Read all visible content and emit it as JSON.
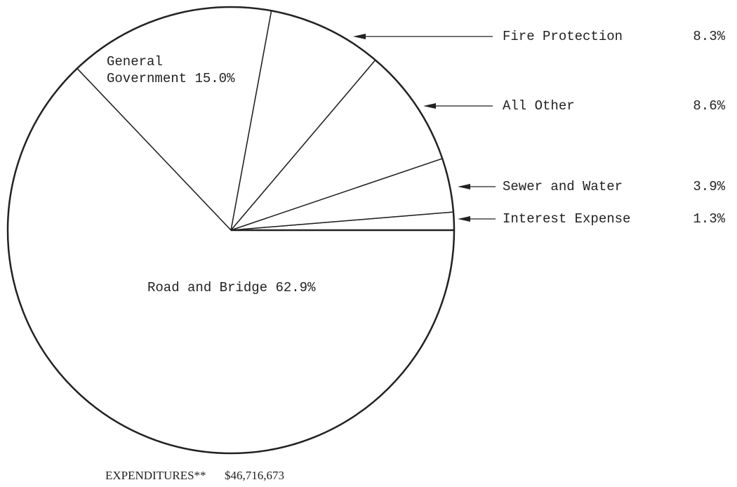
{
  "chart_data": {
    "type": "pie",
    "categories": [
      "Interest Expense",
      "Sewer and Water",
      "All Other",
      "Fire Protection",
      "General Government",
      "Road and Bridge"
    ],
    "values": [
      1.3,
      3.9,
      8.6,
      8.3,
      15.0,
      62.9
    ],
    "value_labels": [
      "1.3%",
      "3.9%",
      "8.6%",
      "8.3%",
      "15.0%",
      "62.9%"
    ],
    "title": "EXPENDITURES**",
    "total": "$46,716,673"
  }
}
